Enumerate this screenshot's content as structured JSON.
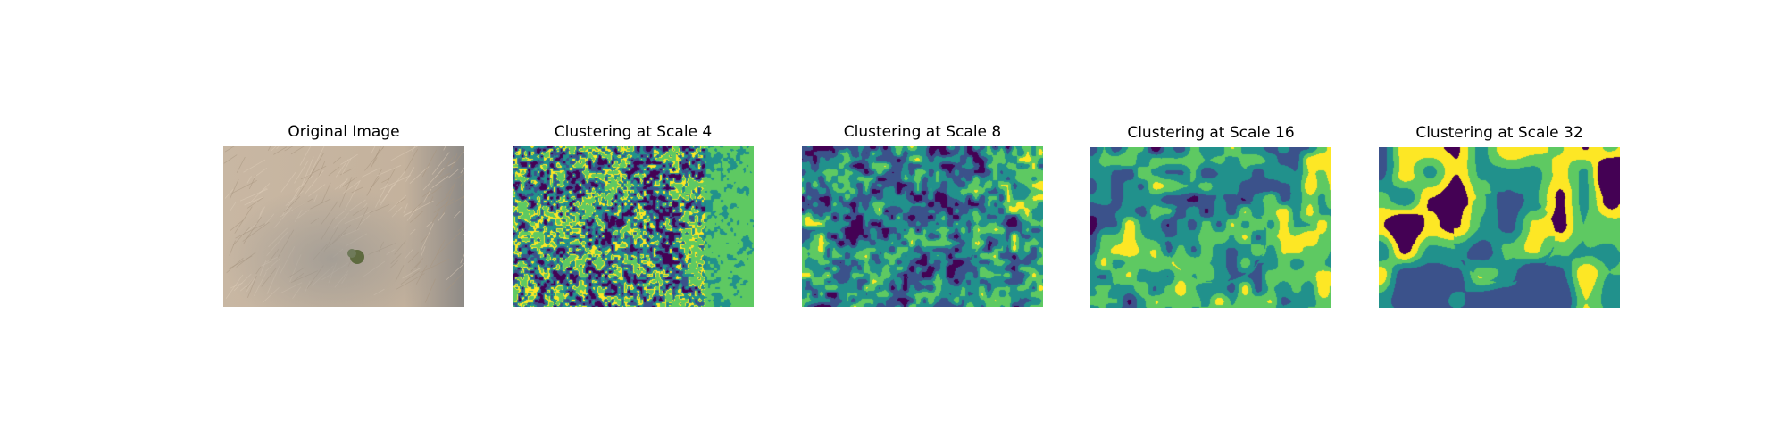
{
  "panels": [
    {
      "title": "Original Image",
      "kind": "photo",
      "photo_colors": [
        "#c9b7a4",
        "#b7a794",
        "#8f8c88",
        "#6f7a5a",
        "#5e6a3f"
      ]
    },
    {
      "title": "Clustering at Scale 4",
      "kind": "cluster",
      "scale": 4
    },
    {
      "title": "Clustering at Scale 8",
      "kind": "cluster",
      "scale": 8
    },
    {
      "title": "Clustering at Scale 16",
      "kind": "cluster",
      "scale": 16
    },
    {
      "title": "Clustering at Scale 32",
      "kind": "cluster",
      "scale": 32
    }
  ],
  "palette": [
    "#440154",
    "#3b528b",
    "#21918c",
    "#5ec962",
    "#fde725"
  ]
}
